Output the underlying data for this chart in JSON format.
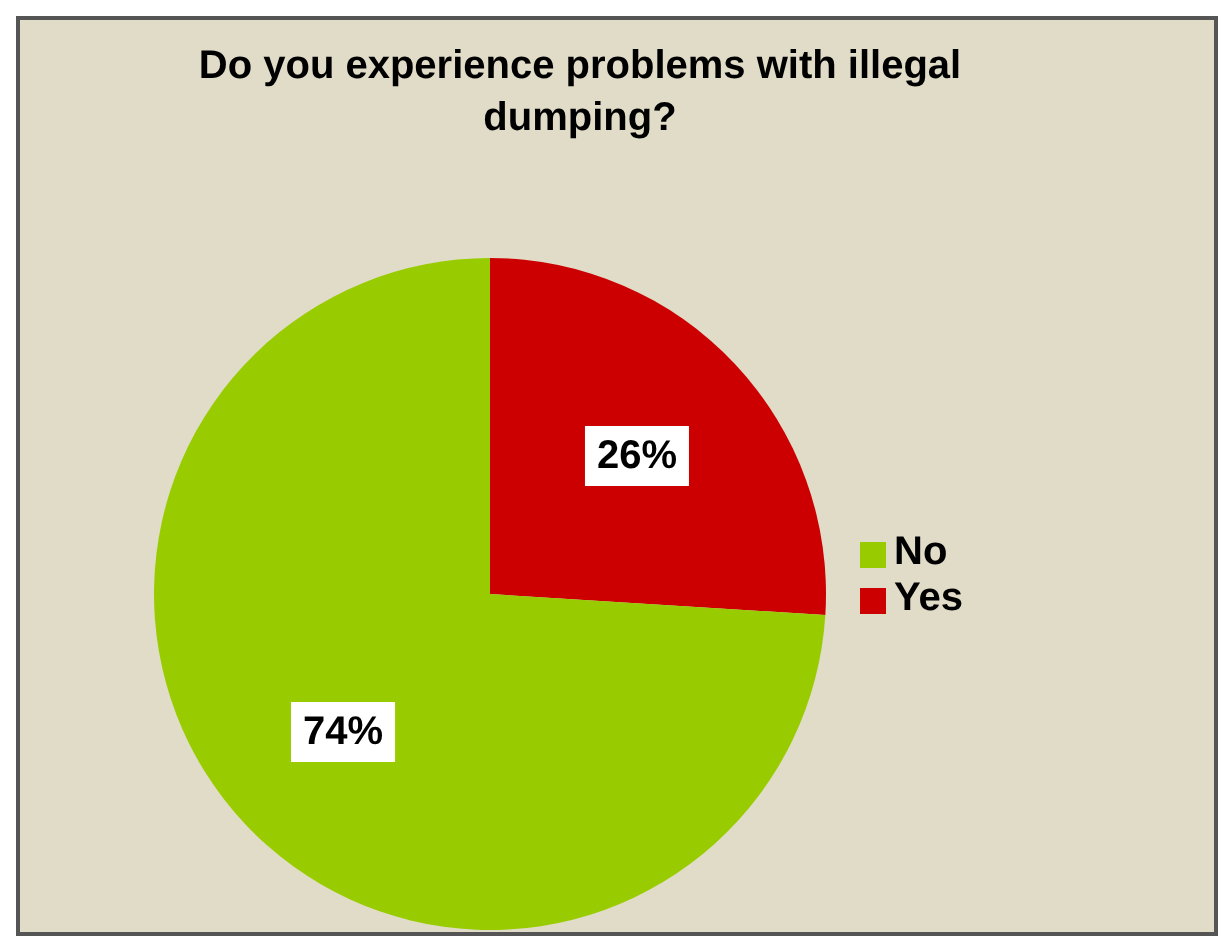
{
  "chart_data": {
    "type": "pie",
    "title": "Do you experience problems with illegal dumping?",
    "categories": [
      "Yes",
      "No"
    ],
    "values": [
      26,
      74
    ],
    "colors": [
      "#cc0000",
      "#99cc00"
    ],
    "value_labels": [
      "26%",
      "74%"
    ],
    "legend": "right"
  }
}
